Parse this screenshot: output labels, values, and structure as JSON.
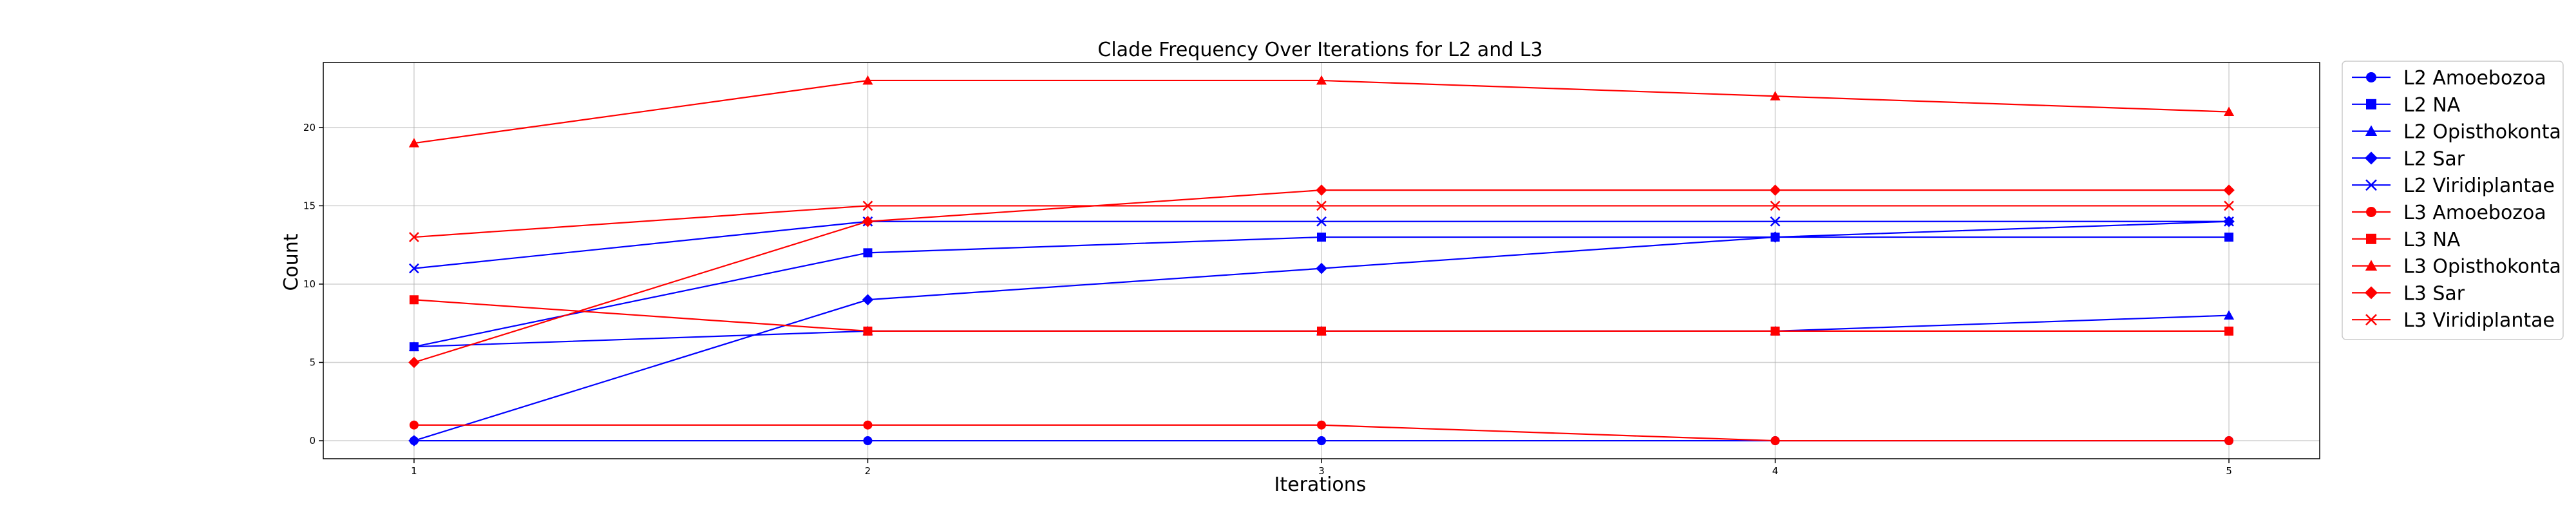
{
  "chart_data": {
    "type": "line",
    "title": "Clade Frequency Over Iterations for L2 and L3",
    "xlabel": "Iterations",
    "ylabel": "Count",
    "x": [
      1,
      2,
      3,
      4,
      5
    ],
    "x_ticks": [
      1,
      2,
      3,
      4,
      5
    ],
    "y_ticks": [
      0,
      5,
      10,
      15,
      20
    ],
    "xlim": [
      0.8,
      5.2
    ],
    "ylim": [
      -1.15,
      24.15
    ],
    "grid": true,
    "legend_position": "outside-right",
    "series": [
      {
        "name": "L2 Amoebozoa",
        "color": "#0000ff",
        "marker": "circle",
        "values": [
          0,
          0,
          0,
          0,
          0
        ]
      },
      {
        "name": "L2 NA",
        "color": "#0000ff",
        "marker": "square",
        "values": [
          6,
          12,
          13,
          13,
          13
        ]
      },
      {
        "name": "L2 Opisthokonta",
        "color": "#0000ff",
        "marker": "triangle",
        "values": [
          6,
          7,
          7,
          7,
          8
        ]
      },
      {
        "name": "L2 Sar",
        "color": "#0000ff",
        "marker": "diamond",
        "values": [
          0,
          9,
          11,
          13,
          14
        ]
      },
      {
        "name": "L2 Viridiplantae",
        "color": "#0000ff",
        "marker": "x",
        "values": [
          11,
          14,
          14,
          14,
          14
        ]
      },
      {
        "name": "L3 Amoebozoa",
        "color": "#ff0000",
        "marker": "circle",
        "values": [
          1,
          1,
          1,
          0,
          0
        ]
      },
      {
        "name": "L3 NA",
        "color": "#ff0000",
        "marker": "square",
        "values": [
          9,
          7,
          7,
          7,
          7
        ]
      },
      {
        "name": "L3 Opisthokonta",
        "color": "#ff0000",
        "marker": "triangle",
        "values": [
          19,
          23,
          23,
          22,
          21
        ]
      },
      {
        "name": "L3 Sar",
        "color": "#ff0000",
        "marker": "diamond",
        "values": [
          5,
          14,
          16,
          16,
          16
        ]
      },
      {
        "name": "L3 Viridiplantae",
        "color": "#ff0000",
        "marker": "x",
        "values": [
          13,
          15,
          15,
          15,
          15
        ]
      }
    ]
  }
}
